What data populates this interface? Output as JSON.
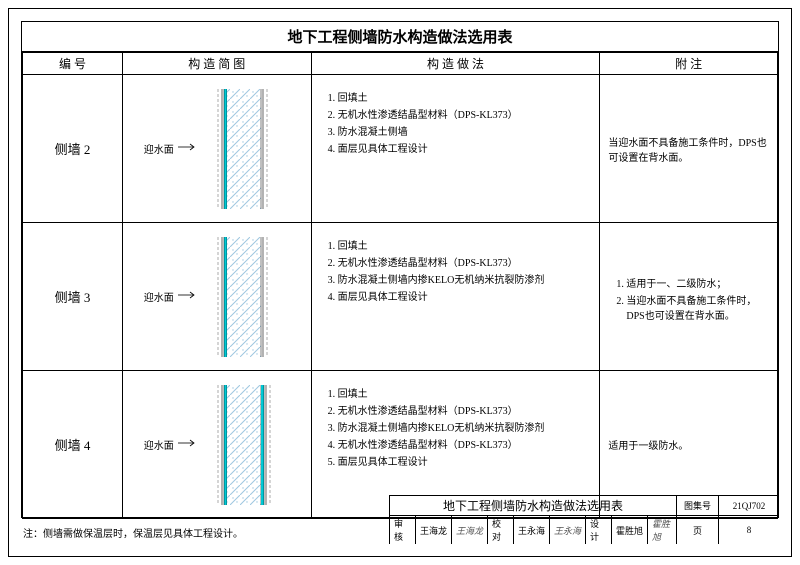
{
  "title": "地下工程侧墙防水构造做法选用表",
  "headers": {
    "col1": "编 号",
    "col2": "构 造 简 图",
    "col3": "构 造 做 法",
    "col4": "附 注"
  },
  "diagram_label": "迎水面",
  "wall_graphic": {
    "width": 90,
    "height": 120,
    "hatch_color": "#9ec7e0",
    "hatch_bg": "#ffffff",
    "layer_line_color": "#000000",
    "membrane_color": "#00c8d4",
    "outer_stroke": "#888888"
  },
  "rows": [
    {
      "id": "侧墙 2",
      "steps": [
        "回填土",
        "无机水性渗透结晶型材料（DPS-KL373）",
        "防水混凝土侧墙",
        "面层见具体工程设计"
      ],
      "notes": "当迎水面不具备施工条件时，DPS也可设置在背水面。",
      "variant": "single"
    },
    {
      "id": "侧墙 3",
      "steps": [
        "回填土",
        "无机水性渗透结晶型材料（DPS-KL373）",
        "防水混凝土侧墙内掺KELO无机纳米抗裂防渗剂",
        "面层见具体工程设计"
      ],
      "notes_list": [
        "适用于一、二级防水；",
        "当迎水面不具备施工条件时，DPS也可设置在背水面。"
      ],
      "variant": "single"
    },
    {
      "id": "侧墙 4",
      "steps": [
        "回填土",
        "无机水性渗透结晶型材料（DPS-KL373）",
        "防水混凝土侧墙内掺KELO无机纳米抗裂防渗剂",
        "无机水性渗透结晶型材料（DPS-KL373）",
        "面层见具体工程设计"
      ],
      "notes": "适用于一级防水。",
      "variant": "double"
    }
  ],
  "footer_note": "注：侧墙需做保温层时，保温层见具体工程设计。",
  "title_block": {
    "sheet_title": "地下工程侧墙防水构造做法选用表",
    "atlas_label": "图集号",
    "atlas_value": "21QJ702",
    "review_label": "审核",
    "review_name": "王海龙",
    "review_sig": "王海龙",
    "proof_label": "校对",
    "proof_name": "王永海",
    "proof_sig": "王永海",
    "design_label": "设计",
    "design_name": "霍胜旭",
    "design_sig": "霍胜旭",
    "page_label": "页",
    "page_number": "8"
  },
  "col_widths": {
    "c1": "90",
    "c2": "170",
    "c3": "260",
    "c4": "160"
  }
}
